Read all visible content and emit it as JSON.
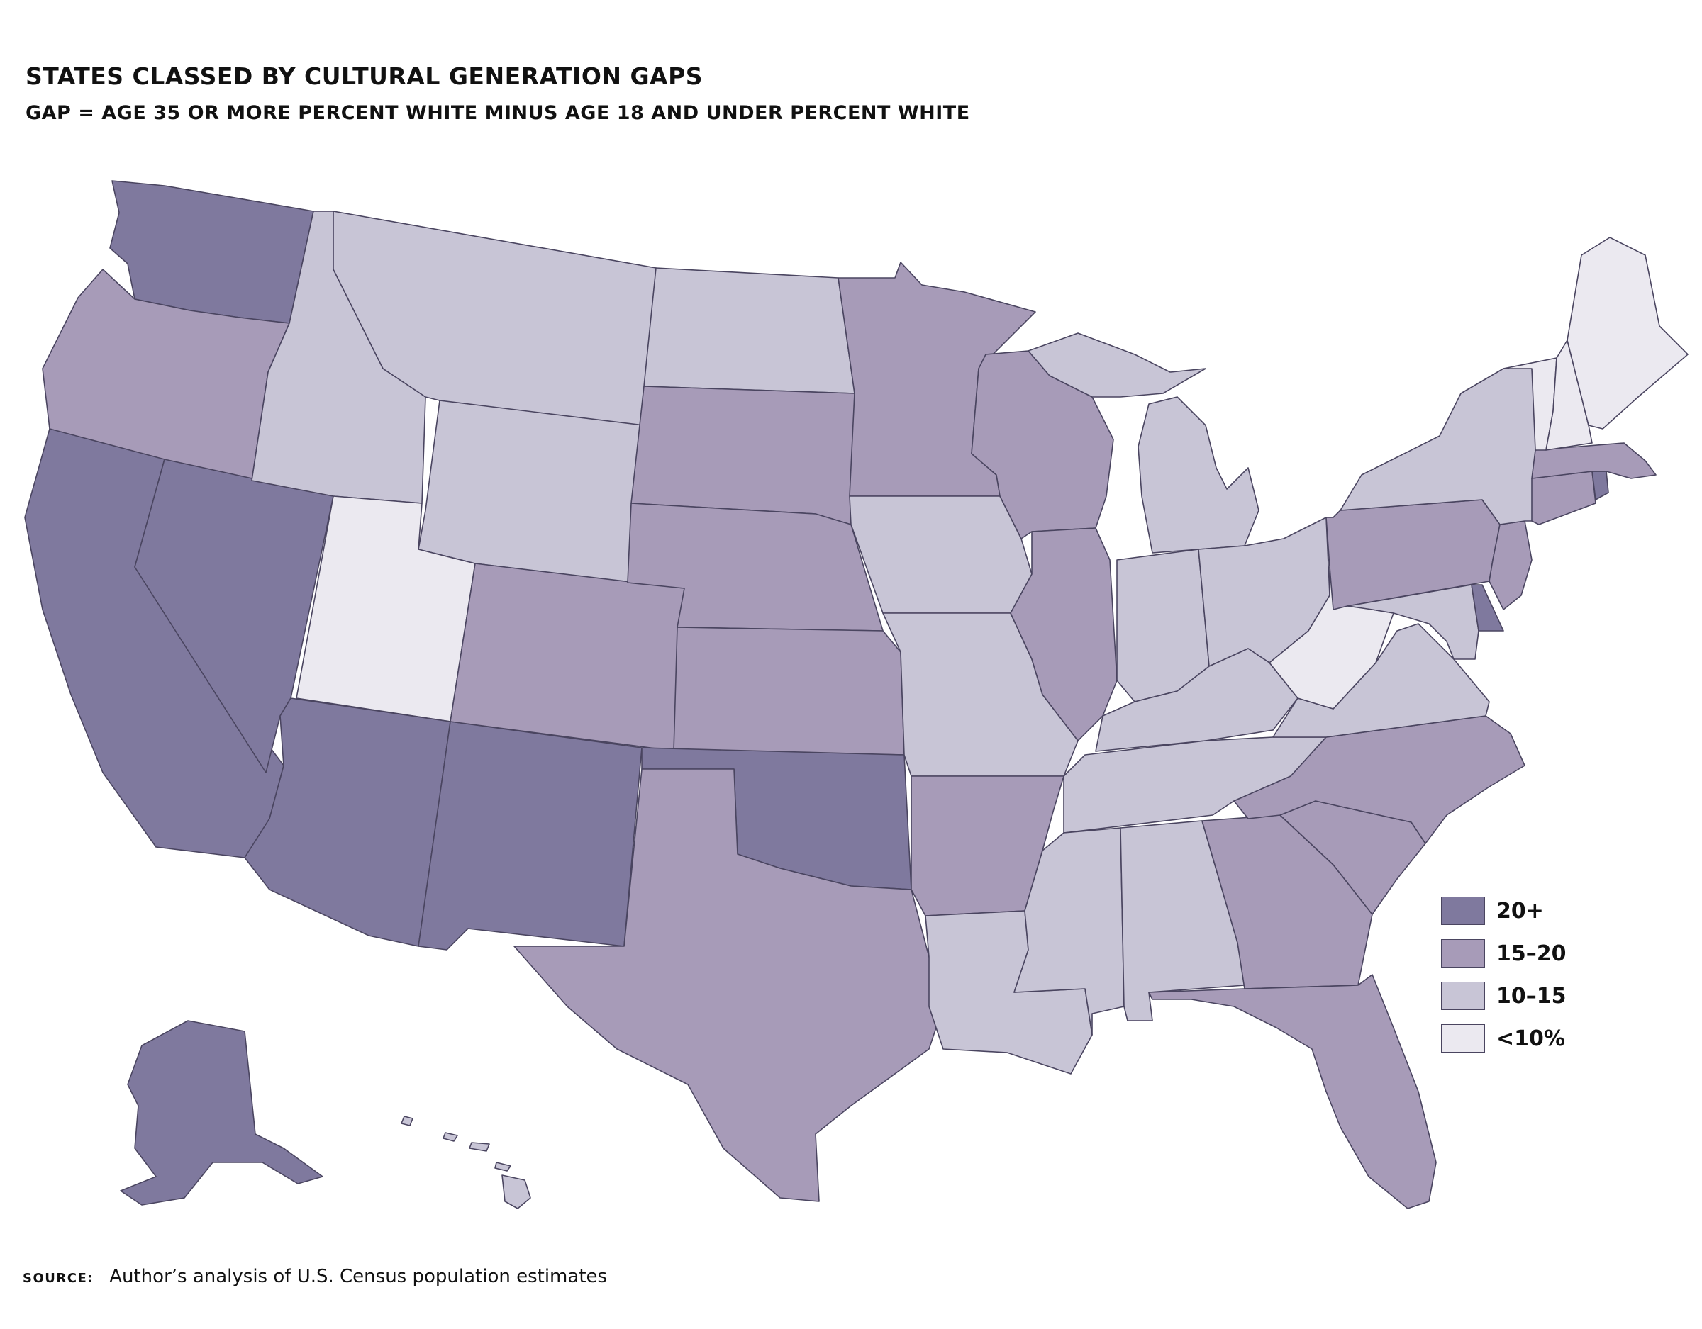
{
  "header": {
    "title": "STATES CLASSED BY CULTURAL GENERATION GAPS",
    "subtitle": "GAP = AGE 35 OR MORE PERCENT WHITE MINUS AGE 18 AND UNDER PERCENT WHITE"
  },
  "colors": {
    "c20": "#7f799e",
    "c15": "#a79bb8",
    "c10": "#c8c5d6",
    "c0": "#ebe9f0",
    "border": "#4a4560"
  },
  "legend": {
    "items": [
      {
        "label": "20+",
        "class": "c20"
      },
      {
        "label": "15–20",
        "class": "c15"
      },
      {
        "label": "10–15",
        "class": "c10"
      },
      {
        "label": "<10%",
        "class": "c0"
      }
    ]
  },
  "states": {
    "WA": "20+",
    "OR": "15–20",
    "CA": "20+",
    "NV": "20+",
    "ID": "10–15",
    "MT": "10–15",
    "WY": "10–15",
    "UT": "<10%",
    "AZ": "20+",
    "NM": "20+",
    "CO": "15–20",
    "ND": "10–15",
    "SD": "15–20",
    "NE": "15–20",
    "KS": "15–20",
    "OK": "20+",
    "TX": "15–20",
    "MN": "15–20",
    "IA": "10–15",
    "MO": "10–15",
    "AR": "15–20",
    "LA": "10–15",
    "WI": "15–20",
    "IL": "15–20",
    "MI": "10–15",
    "IN": "10–15",
    "OH": "10–15",
    "KY": "10–15",
    "TN": "10–15",
    "MS": "10–15",
    "AL": "10–15",
    "GA": "15–20",
    "FL": "15–20",
    "SC": "15–20",
    "NC": "15–20",
    "VA": "10–15",
    "WV": "<10%",
    "MD": "10–15",
    "DE": "20+",
    "PA": "15–20",
    "NJ": "15–20",
    "NY": "10–15",
    "CT": "15–20",
    "RI": "20+",
    "MA": "15–20",
    "VT": "<10%",
    "NH": "<10%",
    "ME": "<10%",
    "AK": "20+",
    "HI": "10–15"
  },
  "source": {
    "label": "SOURCE:",
    "text": "Author’s analysis of U.S. Census population estimates"
  }
}
